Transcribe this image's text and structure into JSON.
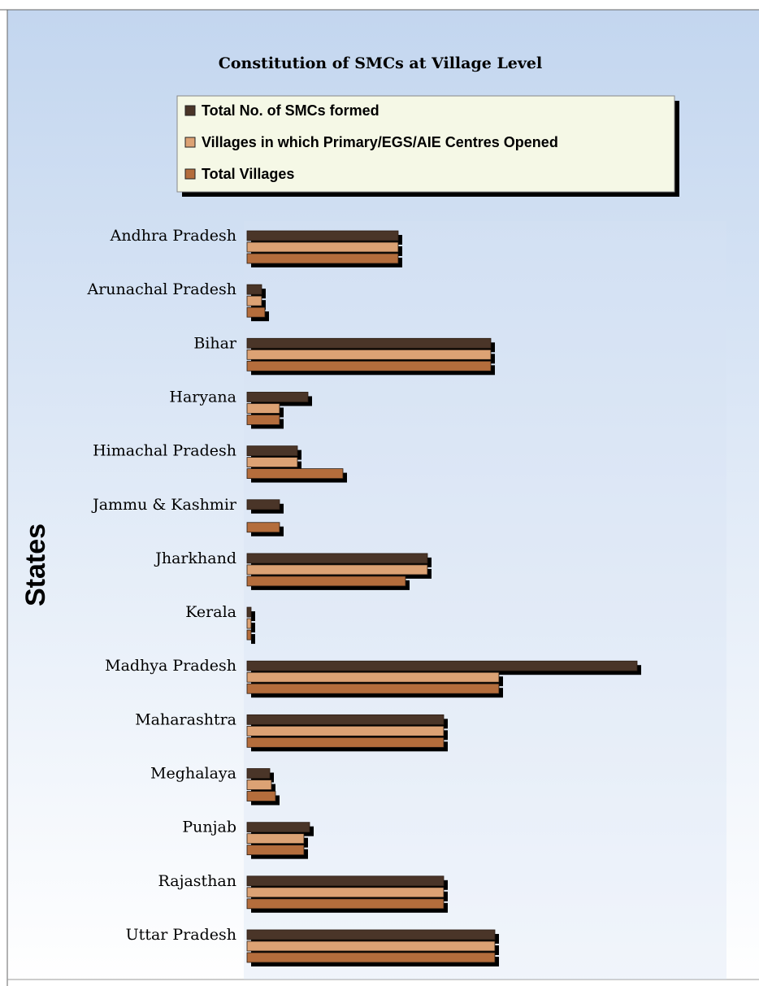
{
  "chart_data": {
    "type": "barh",
    "title": "Constitution of SMCs at Village Level",
    "y_label": "States",
    "categories": [
      "Andhra Pradesh",
      "Arunachal Pradesh",
      "Bihar",
      "Haryana",
      "Himachal Pradesh",
      "Jammu & Kashmir",
      "Jharkhand",
      "Kerala",
      "Madhya Pradesh",
      "Maharashtra",
      "Meghalaya",
      "Punjab",
      "Rajasthan",
      "Uttar Pradesh"
    ],
    "series": [
      {
        "name": "Total No. of SMCs formed",
        "color": "#4a3528",
        "values": [
          186,
          18,
          300,
          75,
          62,
          40,
          222,
          5,
          480,
          242,
          28,
          77,
          242,
          305
        ]
      },
      {
        "name": "Villages in which Primary/EGS/AIE Centres Opened",
        "color": "#dca274",
        "values": [
          186,
          18,
          300,
          40,
          62,
          null,
          222,
          5,
          310,
          242,
          30,
          70,
          242,
          305
        ]
      },
      {
        "name": "Total Villages",
        "color": "#b46d3c",
        "values": [
          186,
          22,
          300,
          40,
          118,
          40,
          195,
          5,
          310,
          242,
          35,
          70,
          242,
          305
        ]
      }
    ],
    "legend": "top"
  }
}
